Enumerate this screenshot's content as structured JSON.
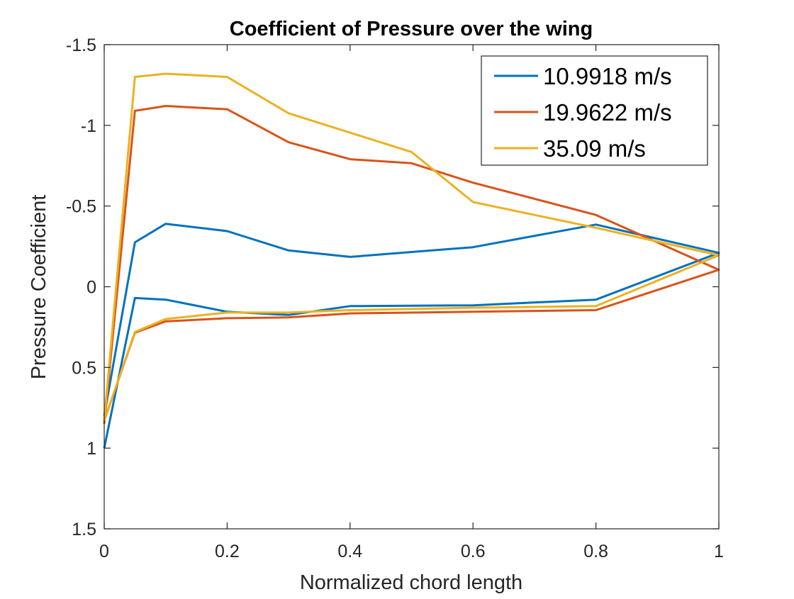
{
  "chart_data": {
    "type": "line",
    "title": "Coefficient of Pressure over the wing",
    "xlabel": "Normalized chord length",
    "ylabel": "Pressure Coefficient",
    "xlim": [
      0,
      1
    ],
    "ylim": [
      -1.5,
      1.5
    ],
    "y_reversed": true,
    "grid": false,
    "legend_position": "top-right",
    "x_ticks": [
      0,
      0.2,
      0.4,
      0.6,
      0.8,
      1
    ],
    "x_tick_labels": [
      "0",
      "0.2",
      "0.4",
      "0.6",
      "0.8",
      "1"
    ],
    "y_ticks": [
      -1.5,
      -1,
      -0.5,
      0,
      0.5,
      1,
      1.5
    ],
    "y_tick_labels": [
      "-1.5",
      "-1",
      "-0.5",
      "0",
      "0.5",
      "1",
      "1.5"
    ],
    "series": [
      {
        "name": "10.9918 m/s",
        "color": "#0072BD",
        "x": [
          0,
          0.05,
          0.1,
          0.2,
          0.3,
          0.4,
          0.6,
          0.8,
          1,
          0.8,
          0.6,
          0.4,
          0.3,
          0.2,
          0.1,
          0.05,
          0
        ],
        "y": [
          1.0,
          0.07,
          0.08,
          0.155,
          0.175,
          0.12,
          0.115,
          0.08,
          -0.21,
          -0.385,
          -0.245,
          -0.185,
          -0.225,
          -0.345,
          -0.39,
          -0.275,
          0.8
        ]
      },
      {
        "name": "19.9622 m/s",
        "color": "#D95319",
        "x": [
          0,
          0.05,
          0.1,
          0.2,
          0.3,
          0.4,
          0.6,
          0.8,
          1,
          0.8,
          0.6,
          0.5,
          0.4,
          0.3,
          0.2,
          0.1,
          0.05,
          0
        ],
        "y": [
          0.83,
          0.285,
          0.215,
          0.195,
          0.19,
          0.165,
          0.155,
          0.145,
          -0.105,
          -0.445,
          -0.645,
          -0.765,
          -0.79,
          -0.895,
          -1.1,
          -1.12,
          -1.09,
          0.85
        ]
      },
      {
        "name": "35.09 m/s",
        "color": "#EDB120",
        "x": [
          0,
          0.05,
          0.1,
          0.2,
          0.3,
          0.4,
          0.6,
          0.8,
          1,
          0.8,
          0.6,
          0.5,
          0.3,
          0.2,
          0.1,
          0.05,
          0
        ],
        "y": [
          0.83,
          0.28,
          0.2,
          0.16,
          0.16,
          0.145,
          0.13,
          0.12,
          -0.195,
          -0.365,
          -0.525,
          -0.835,
          -1.075,
          -1.3,
          -1.32,
          -1.3,
          0.83
        ]
      }
    ]
  }
}
